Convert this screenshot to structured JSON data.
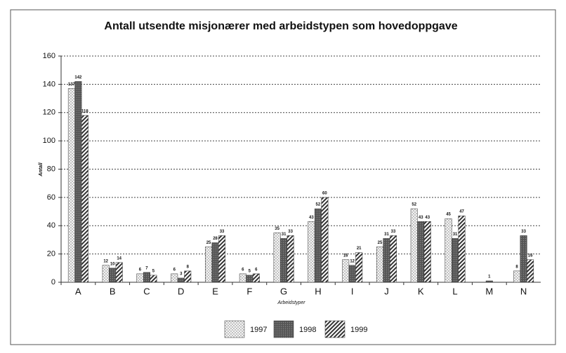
{
  "chart_data": {
    "type": "bar",
    "title": "Antall utsendte misjonærer med arbeidstypen som hovedoppgave",
    "y_label": "Antall",
    "x_label": "Arbeidstyper",
    "categories": [
      "A",
      "B",
      "C",
      "D",
      "E",
      "F",
      "G",
      "H",
      "I",
      "J",
      "K",
      "L",
      "M",
      "N"
    ],
    "series": [
      {
        "name": "1997",
        "color": "dots",
        "values": [
          137,
          12,
          6,
          6,
          25,
          6,
          35,
          43,
          16,
          25,
          52,
          45,
          null,
          8
        ]
      },
      {
        "name": "1998",
        "color": "dark",
        "values": [
          142,
          10,
          7,
          3,
          28,
          5,
          31,
          52,
          12,
          31,
          43,
          31,
          1,
          33
        ]
      },
      {
        "name": "1999",
        "color": "hatch",
        "values": [
          118,
          14,
          5,
          8,
          33,
          6,
          33,
          60,
          21,
          33,
          43,
          47,
          null,
          16
        ]
      }
    ],
    "ylim": [
      0,
      160
    ],
    "yticks": [
      0,
      20,
      40,
      60,
      80,
      100,
      120,
      140,
      160
    ],
    "grid": true
  }
}
